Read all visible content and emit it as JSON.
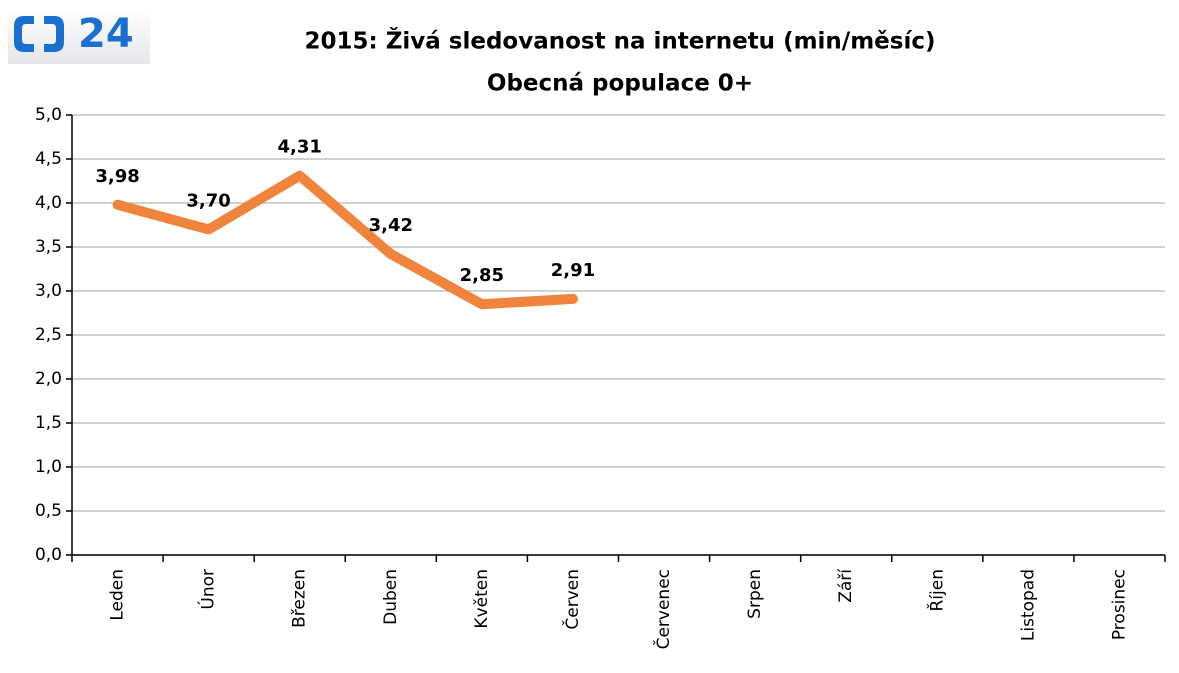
{
  "logo": "24",
  "chart_data": {
    "type": "line",
    "title": "2015: Živá sledovanost na internetu (min/měsíc)",
    "subtitle": "Obecná populace 0+",
    "categories": [
      "Leden",
      "Únor",
      "Březen",
      "Duben",
      "Květen",
      "Červen",
      "Červenec",
      "Srpen",
      "Září",
      "Říjen",
      "Listopad",
      "Prosinec"
    ],
    "series": [
      {
        "name": null,
        "color": "#f0843c",
        "values": [
          3.98,
          3.7,
          4.31,
          3.42,
          2.85,
          2.91,
          null,
          null,
          null,
          null,
          null,
          null
        ],
        "value_labels": [
          "3,98",
          "3,70",
          "4,31",
          "3,42",
          "2,85",
          "2,91",
          null,
          null,
          null,
          null,
          null,
          null
        ]
      }
    ],
    "ylim": [
      0,
      5
    ],
    "yticks": [
      {
        "value": 0,
        "label": "0,0"
      },
      {
        "value": 0.5,
        "label": "0,5"
      },
      {
        "value": 1,
        "label": "1,0"
      },
      {
        "value": 1.5,
        "label": "1,5"
      },
      {
        "value": 2,
        "label": "2,0"
      },
      {
        "value": 2.5,
        "label": "2,5"
      },
      {
        "value": 3,
        "label": "3,0"
      },
      {
        "value": 3.5,
        "label": "3,5"
      },
      {
        "value": 4,
        "label": "4,0"
      },
      {
        "value": 4.5,
        "label": "4,5"
      },
      {
        "value": 5,
        "label": "5,0"
      }
    ],
    "grid": true
  }
}
